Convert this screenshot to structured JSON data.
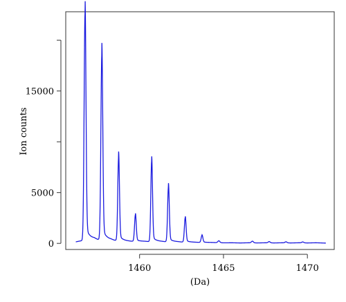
{
  "chart_data": {
    "type": "line",
    "title": "",
    "xlabel": "(Da)",
    "ylabel": "Ion counts",
    "xlim": [
      1455.6,
      1471.6
    ],
    "ylim": [
      -600,
      22800
    ],
    "x_ticks": [
      1460,
      1465,
      1470
    ],
    "x_tick_labels": [
      "1460",
      "1465",
      "1470"
    ],
    "y_ticks": [
      0,
      5000,
      10000,
      15000,
      20000
    ],
    "y_tick_labels": [
      "0",
      "5000",
      "",
      "15000",
      ""
    ],
    "grid": false,
    "legend": "none",
    "series_color": "#1a1adf",
    "baseline": {
      "x": [
        1456.2,
        1456.5,
        1457.3,
        1457.5,
        1458.3,
        1458.5,
        1459.3,
        1459.5,
        1460.3,
        1460.5,
        1461.3,
        1461.5,
        1462.3,
        1462.5,
        1463.3,
        1463.5,
        1464.3,
        1464.5,
        1465.0,
        1465.5,
        1466.0,
        1466.5,
        1467.0,
        1467.5,
        1468.0,
        1468.5,
        1469.0,
        1469.5,
        1470.0,
        1470.5,
        1471.1
      ],
      "y": [
        150,
        250,
        450,
        350,
        350,
        280,
        220,
        200,
        200,
        180,
        180,
        160,
        150,
        130,
        110,
        100,
        90,
        80,
        50,
        60,
        40,
        60,
        40,
        60,
        40,
        60,
        40,
        60,
        40,
        60,
        30
      ]
    },
    "peaks": [
      {
        "x": 1456.75,
        "y": 22300,
        "width": 0.055
      },
      {
        "x": 1457.75,
        "y": 18200,
        "width": 0.055
      },
      {
        "x": 1458.75,
        "y": 8200,
        "width": 0.05
      },
      {
        "x": 1459.75,
        "y": 2600,
        "width": 0.05
      },
      {
        "x": 1460.72,
        "y": 7900,
        "width": 0.05
      },
      {
        "x": 1461.72,
        "y": 5400,
        "width": 0.05
      },
      {
        "x": 1462.72,
        "y": 2400,
        "width": 0.05
      },
      {
        "x": 1463.72,
        "y": 700,
        "width": 0.05
      },
      {
        "x": 1464.72,
        "y": 180,
        "width": 0.06
      },
      {
        "x": 1466.72,
        "y": 160,
        "width": 0.06
      },
      {
        "x": 1467.72,
        "y": 120,
        "width": 0.06
      },
      {
        "x": 1468.72,
        "y": 100,
        "width": 0.06
      },
      {
        "x": 1469.72,
        "y": 90,
        "width": 0.06
      }
    ]
  }
}
